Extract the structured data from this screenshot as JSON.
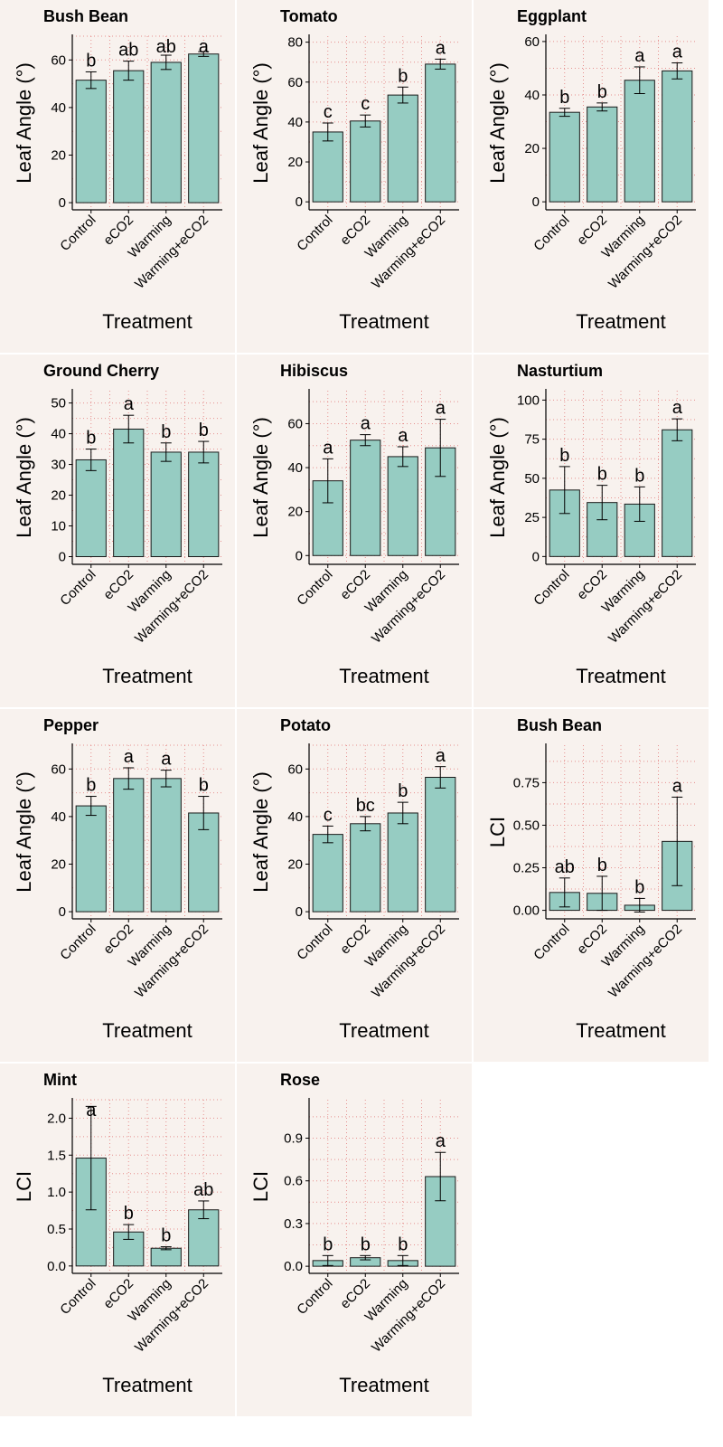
{
  "styles": {
    "panel_bg": "#f8f2ee",
    "bar_fill": "#96ccc2",
    "bar_stroke": "#1a1a1a",
    "grid_color": "#e07070",
    "axis_color": "#000000"
  },
  "x_axis_title": "Treatment",
  "categories": [
    "Control",
    "eCO2",
    "Warming",
    "Warming+eCO2"
  ],
  "chart_data": [
    {
      "type": "bar",
      "title": "Bush Bean",
      "xlabel": "Treatment",
      "ylabel": "Leaf Angle (°)",
      "categories": [
        "Control",
        "eCO2",
        "Warming",
        "Warming+eCO2"
      ],
      "values": [
        51.5,
        55.5,
        59,
        62.5
      ],
      "errors": [
        3.5,
        4,
        3,
        1
      ],
      "letters": [
        "b",
        "ab",
        "ab",
        "a"
      ],
      "ylim": [
        -3,
        70
      ],
      "ticks": [
        0,
        20,
        40,
        60
      ],
      "tick_labels": [
        "0",
        "20",
        "40",
        "60"
      ],
      "grid": true
    },
    {
      "type": "bar",
      "title": "Tomato",
      "xlabel": "Treatment",
      "ylabel": "Leaf Angle (°)",
      "categories": [
        "Control",
        "eCO2",
        "Warming",
        "Warming+eCO2"
      ],
      "values": [
        35,
        40.5,
        53.5,
        69
      ],
      "errors": [
        4.5,
        3,
        4,
        2.5
      ],
      "letters": [
        "c",
        "c",
        "b",
        "a"
      ],
      "ylim": [
        -4,
        83
      ],
      "ticks": [
        0,
        20,
        40,
        60,
        80
      ],
      "tick_labels": [
        "0",
        "20",
        "40",
        "60",
        "80"
      ],
      "grid": true
    },
    {
      "type": "bar",
      "title": "Eggplant",
      "xlabel": "Treatment",
      "ylabel": "Leaf Angle (°)",
      "categories": [
        "Control",
        "eCO2",
        "Warming",
        "Warming+eCO2"
      ],
      "values": [
        33.5,
        35.5,
        45.5,
        49
      ],
      "errors": [
        1.5,
        1.5,
        5,
        3
      ],
      "letters": [
        "b",
        "b",
        "a",
        "a"
      ],
      "ylim": [
        -3,
        62
      ],
      "ticks": [
        0,
        20,
        40,
        60
      ],
      "tick_labels": [
        "0",
        "20",
        "40",
        "60"
      ],
      "grid": true
    },
    {
      "type": "bar",
      "title": "Ground Cherry",
      "xlabel": "Treatment",
      "ylabel": "Leaf Angle (°)",
      "categories": [
        "Control",
        "eCO2",
        "Warming",
        "Warming+eCO2"
      ],
      "values": [
        31.5,
        41.5,
        34,
        34
      ],
      "errors": [
        3.5,
        4.5,
        3,
        3.5
      ],
      "letters": [
        "b",
        "a",
        "b",
        "b"
      ],
      "ylim": [
        -2.5,
        54
      ],
      "ticks": [
        0,
        10,
        20,
        30,
        40,
        50
      ],
      "tick_labels": [
        "0",
        "10",
        "20",
        "30",
        "40",
        "50"
      ],
      "grid": true
    },
    {
      "type": "bar",
      "title": "Hibiscus",
      "xlabel": "Treatment",
      "ylabel": "Leaf Angle (°)",
      "categories": [
        "Control",
        "eCO2",
        "Warming",
        "Warming+eCO2"
      ],
      "values": [
        34,
        52.5,
        45,
        49
      ],
      "errors": [
        10,
        2.5,
        4.5,
        13
      ],
      "letters": [
        "a",
        "a",
        "a",
        "a"
      ],
      "ylim": [
        -4,
        75
      ],
      "ticks": [
        0,
        20,
        40,
        60
      ],
      "tick_labels": [
        "0",
        "20",
        "40",
        "60"
      ],
      "grid": true
    },
    {
      "type": "bar",
      "title": "Nasturtium",
      "xlabel": "Treatment",
      "ylabel": "Leaf Angle (°)",
      "categories": [
        "Control",
        "eCO2",
        "Warming",
        "Warming+eCO2"
      ],
      "values": [
        42.5,
        34.5,
        33.5,
        81
      ],
      "errors": [
        15,
        11,
        11,
        7
      ],
      "letters": [
        "b",
        "b",
        "b",
        "a"
      ],
      "ylim": [
        -5,
        106
      ],
      "ticks": [
        0,
        25,
        50,
        75,
        100
      ],
      "tick_labels": [
        "0",
        "25",
        "50",
        "75",
        "100"
      ],
      "grid": true
    },
    {
      "type": "bar",
      "title": "Pepper",
      "xlabel": "Treatment",
      "ylabel": "Leaf Angle (°)",
      "categories": [
        "Control",
        "eCO2",
        "Warming",
        "Warming+eCO2"
      ],
      "values": [
        44.5,
        56,
        56,
        41.5
      ],
      "errors": [
        4,
        4.5,
        3.5,
        7
      ],
      "letters": [
        "b",
        "a",
        "a",
        "b"
      ],
      "ylim": [
        -3,
        70
      ],
      "ticks": [
        0,
        20,
        40,
        60
      ],
      "tick_labels": [
        "0",
        "20",
        "40",
        "60"
      ],
      "grid": true
    },
    {
      "type": "bar",
      "title": "Potato",
      "xlabel": "Treatment",
      "ylabel": "Leaf Angle (°)",
      "categories": [
        "Control",
        "eCO2",
        "Warming",
        "Warming+eCO2"
      ],
      "values": [
        32.5,
        37,
        41.5,
        56.5
      ],
      "errors": [
        3.5,
        3,
        4.5,
        4.5
      ],
      "letters": [
        "c",
        "bc",
        "b",
        "a"
      ],
      "ylim": [
        -3,
        70
      ],
      "ticks": [
        0,
        20,
        40,
        60
      ],
      "tick_labels": [
        "0",
        "20",
        "40",
        "60"
      ],
      "grid": true
    },
    {
      "type": "bar",
      "title": "Bush Bean",
      "xlabel": "Treatment",
      "ylabel": "LCI",
      "categories": [
        "Control",
        "eCO2",
        "Warming",
        "Warming+eCO2"
      ],
      "values": [
        0.105,
        0.1,
        0.03,
        0.405
      ],
      "errors": [
        0.085,
        0.1,
        0.04,
        0.26
      ],
      "letters": [
        "ab",
        "b",
        "b",
        "a"
      ],
      "ylim": [
        -0.05,
        0.97
      ],
      "ticks": [
        0,
        0.25,
        0.5,
        0.75
      ],
      "tick_labels": [
        "0.00",
        "0.25",
        "0.50",
        "0.75"
      ],
      "grid": true
    },
    {
      "type": "bar",
      "title": "Mint",
      "xlabel": "Treatment",
      "ylabel": "LCI",
      "categories": [
        "Control",
        "eCO2",
        "Warming",
        "Warming+eCO2"
      ],
      "values": [
        1.46,
        0.46,
        0.24,
        0.76
      ],
      "errors": [
        0.7,
        0.1,
        0.02,
        0.12
      ],
      "letters": [
        "a",
        "b",
        "b",
        "ab"
      ],
      "ylim": [
        -0.1,
        2.25
      ],
      "ticks": [
        0,
        0.5,
        1,
        1.5,
        2
      ],
      "tick_labels": [
        "0.0",
        "0.5",
        "1.0",
        "1.5",
        "2.0"
      ],
      "grid": true
    },
    {
      "type": "bar",
      "title": "Rose",
      "xlabel": "Treatment",
      "ylabel": "LCI",
      "categories": [
        "Control",
        "eCO2",
        "Warming",
        "Warming+eCO2"
      ],
      "values": [
        0.04,
        0.06,
        0.04,
        0.63
      ],
      "errors": [
        0.035,
        0.015,
        0.035,
        0.17
      ],
      "letters": [
        "b",
        "b",
        "b",
        "a"
      ],
      "ylim": [
        -0.05,
        1.17
      ],
      "ticks": [
        0,
        0.3,
        0.6,
        0.9
      ],
      "tick_labels": [
        "0.0",
        "0.3",
        "0.6",
        "0.9"
      ],
      "grid": true
    }
  ]
}
